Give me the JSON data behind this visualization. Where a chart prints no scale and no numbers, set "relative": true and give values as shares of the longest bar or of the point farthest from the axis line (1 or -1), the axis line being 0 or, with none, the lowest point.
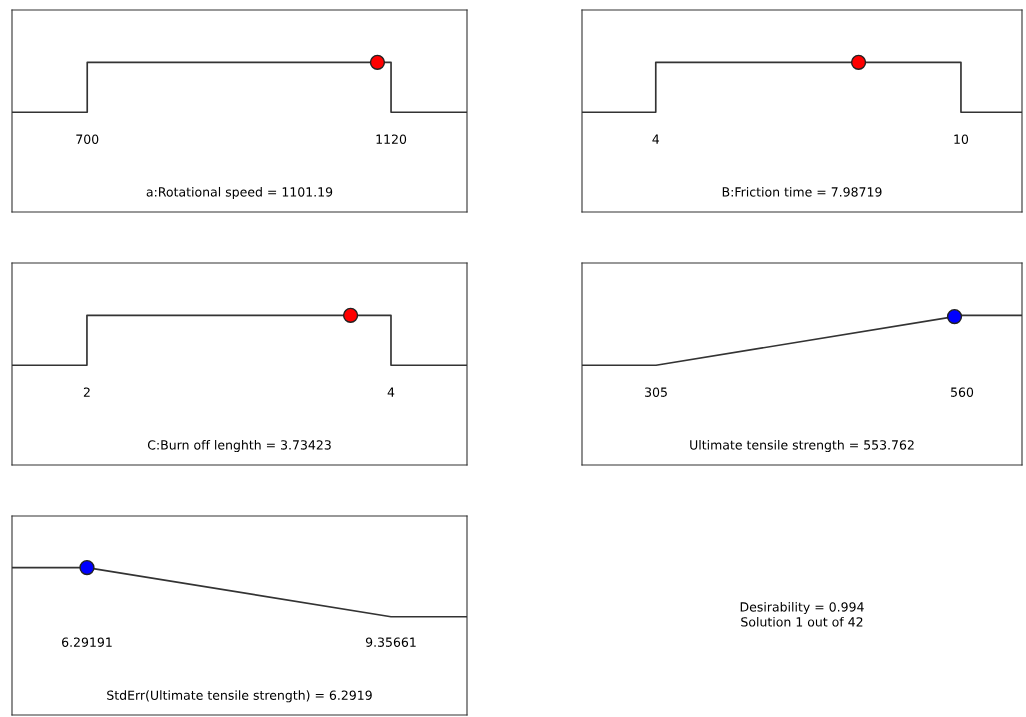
{
  "chart_data": [
    {
      "type": "line",
      "relative": true,
      "xlabel": "a:Rotational speed = 1101.19",
      "xlim": [
        596,
        1225
      ],
      "xticks": [
        700,
        1120
      ],
      "series": [
        {
          "type": "line",
          "color": "#333333",
          "x": [
            596,
            700,
            700,
            1120,
            1120,
            1225
          ],
          "values": [
            0,
            0,
            1,
            1,
            0,
            0
          ]
        },
        {
          "type": "scatter",
          "color": "#ff0000",
          "marker": "circle",
          "x": [
            1101.19
          ],
          "values": [
            1
          ]
        }
      ]
    },
    {
      "type": "line",
      "relative": true,
      "xlabel": "B:Friction time = 7.98719",
      "xlim": [
        2.55,
        11.2
      ],
      "xticks": [
        4,
        10
      ],
      "series": [
        {
          "type": "line",
          "color": "#333333",
          "x": [
            2.55,
            4,
            4,
            10,
            10,
            11.2
          ],
          "values": [
            0,
            0,
            1,
            1,
            0,
            0
          ]
        },
        {
          "type": "scatter",
          "color": "#ff0000",
          "marker": "circle",
          "x": [
            7.98719
          ],
          "values": [
            1
          ]
        }
      ]
    },
    {
      "type": "line",
      "relative": true,
      "xlabel": "C:Burn off lenghth = 3.73423",
      "xlim": [
        1.507,
        4.5
      ],
      "xticks": [
        2,
        4
      ],
      "series": [
        {
          "type": "line",
          "color": "#333333",
          "x": [
            1.507,
            2,
            2,
            4,
            4,
            4.5
          ],
          "values": [
            0,
            0,
            1,
            1,
            0,
            0
          ]
        },
        {
          "type": "scatter",
          "color": "#ff0000",
          "marker": "circle",
          "x": [
            3.73423
          ],
          "values": [
            1
          ]
        }
      ]
    },
    {
      "type": "line",
      "relative": true,
      "xlabel": "Ultimate tensile strength = 553.762",
      "xlim": [
        243.3,
        610
      ],
      "xticks": [
        305,
        560
      ],
      "series": [
        {
          "type": "line",
          "color": "#333333",
          "x": [
            243.3,
            305,
            560,
            610
          ],
          "values": [
            0,
            0,
            1,
            1
          ]
        },
        {
          "type": "scatter",
          "color": "#0000ff",
          "marker": "circle",
          "x": [
            553.762
          ],
          "values": [
            0.9755
          ]
        }
      ]
    },
    {
      "type": "line",
      "relative": true,
      "xlabel": "StdErr(Ultimate tensile strength) = 6.2919",
      "xlim": [
        5.536,
        10.123
      ],
      "xticks": [
        6.29191,
        9.35661
      ],
      "series": [
        {
          "type": "line",
          "color": "#333333",
          "x": [
            5.536,
            6.29191,
            9.35661,
            10.123
          ],
          "values": [
            1,
            1,
            0,
            0
          ]
        },
        {
          "type": "scatter",
          "color": "#0000ff",
          "marker": "circle",
          "x": [
            6.29191
          ],
          "values": [
            1
          ]
        }
      ]
    },
    {
      "type": "other",
      "annotations": [
        "Desirability = 0.994",
        "Solution 1 out of 42"
      ]
    }
  ]
}
